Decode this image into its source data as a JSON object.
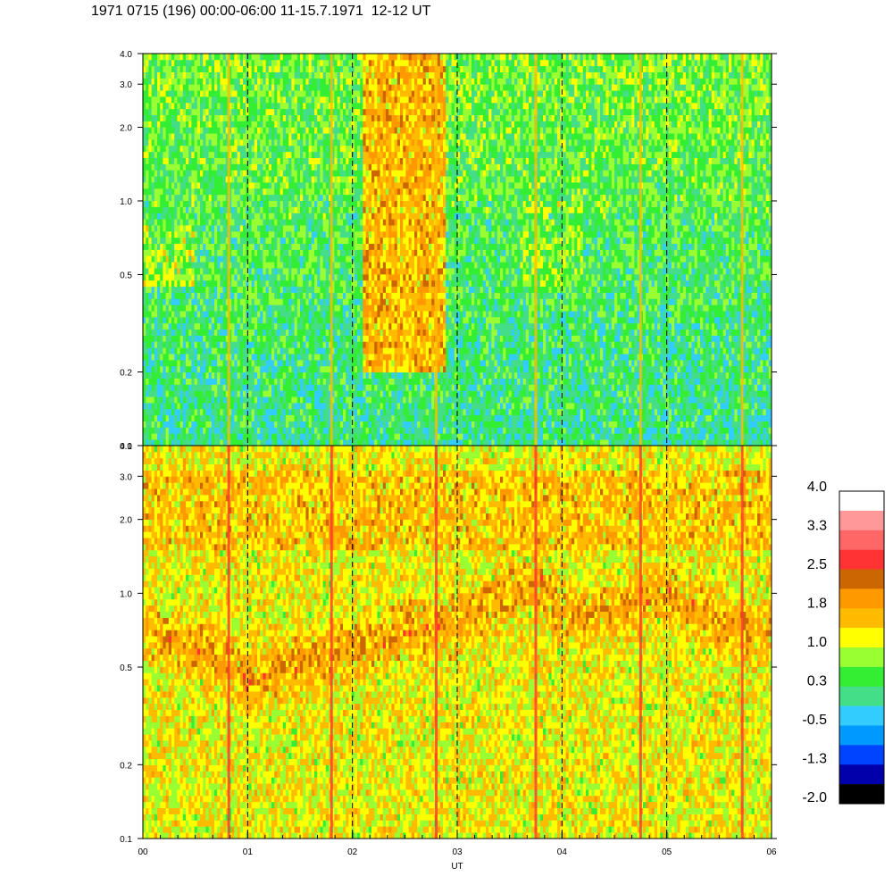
{
  "chart_data": {
    "type": "heatmap",
    "title": "1971 0715 (196) 00:00-06:00 11-15.7.1971  12-12 UT",
    "xlabel": "UT",
    "x_tick_labels": [
      "00",
      "01",
      "02",
      "03",
      "04",
      "05",
      "06"
    ],
    "x_range_hours": [
      0,
      6
    ],
    "y_scale": "log",
    "y_range": [
      0.1,
      4.0
    ],
    "y_tick_labels": [
      "0.1",
      "0.2",
      "0.5",
      "1.0",
      "2.0",
      "3.0",
      "4.0"
    ],
    "y_tick_values": [
      0.1,
      0.2,
      0.5,
      1.0,
      2.0,
      3.0,
      4.0
    ],
    "hour_gridlines": [
      1,
      2,
      3,
      4,
      5
    ],
    "panels": [
      {
        "id": "top",
        "background_level": 0.1,
        "features": [
          {
            "x_start": 2.1,
            "x_end": 2.9,
            "y_low": 0.2,
            "y_high": 4.0,
            "level": 1.8
          },
          {
            "x_start": 0.0,
            "x_end": 0.5,
            "y_low": 0.45,
            "y_high": 0.8,
            "level": 0.9
          },
          {
            "x_start": 3.6,
            "x_end": 4.2,
            "y_low": 0.45,
            "y_high": 1.0,
            "level": 0.8
          }
        ]
      },
      {
        "id": "bottom",
        "background_level": 1.2,
        "ridge": {
          "x": [
            0.0,
            0.5,
            1.0,
            1.5,
            2.0,
            2.5,
            3.0,
            3.5,
            3.8,
            4.0,
            4.5,
            5.0,
            5.5,
            6.0
          ],
          "y": [
            0.7,
            0.6,
            0.45,
            0.5,
            0.6,
            0.7,
            0.75,
            1.0,
            1.1,
            0.8,
            0.85,
            1.0,
            0.75,
            0.7
          ],
          "level": 1.9
        },
        "features": [
          {
            "x_start": 0.0,
            "x_end": 6.0,
            "y_low": 1.5,
            "y_high": 3.2,
            "level": 1.7
          }
        ]
      }
    ],
    "spikes_hours": [
      0.82,
      1.8,
      2.8,
      3.75,
      4.75,
      5.72
    ],
    "colorbar": {
      "labels": [
        "4.0",
        "3.3",
        "2.5",
        "1.8",
        "1.0",
        "0.3",
        "-0.5",
        "-1.3",
        "-2.0"
      ],
      "min": -2.0,
      "max": 4.0,
      "colors": [
        "#ffffff",
        "#ff9999",
        "#ff6666",
        "#ff3333",
        "#cc6600",
        "#ff9900",
        "#ffbb00",
        "#ffff00",
        "#99ff33",
        "#33ee33",
        "#44dd88",
        "#33ccff",
        "#0099ff",
        "#0044ff",
        "#0000aa",
        "#000000"
      ]
    }
  }
}
